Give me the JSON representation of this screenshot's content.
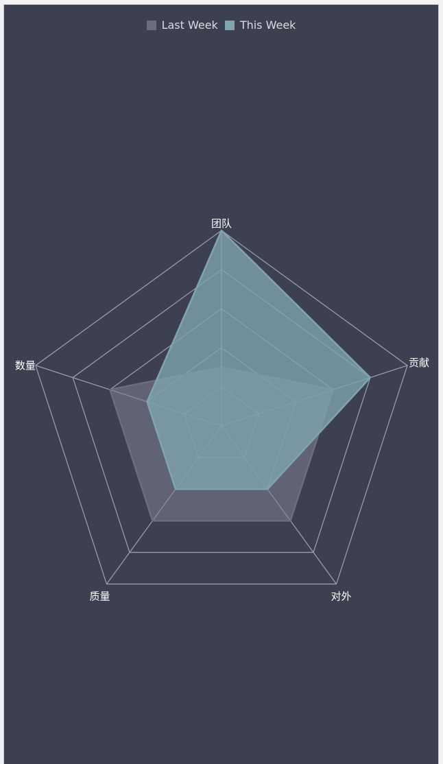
{
  "chart_data": {
    "type": "radar",
    "indicators": [
      "团队",
      "贡献",
      "对外",
      "质量",
      "数量"
    ],
    "max": 10,
    "levels": 5,
    "series": [
      {
        "name": "Last Week",
        "values": [
          3,
          6,
          6,
          6,
          6
        ],
        "color": "#6a6e7e",
        "fill": "rgba(125,128,145,0.55)"
      },
      {
        "name": "This Week",
        "values": [
          10,
          8,
          4,
          4,
          4
        ],
        "color": "#7fa5ad",
        "fill": "rgba(127,165,173,0.78)"
      }
    ],
    "grid": true,
    "legend_position": "top-center",
    "grid_color": "#9a9ca6",
    "background": "#3c4050"
  }
}
